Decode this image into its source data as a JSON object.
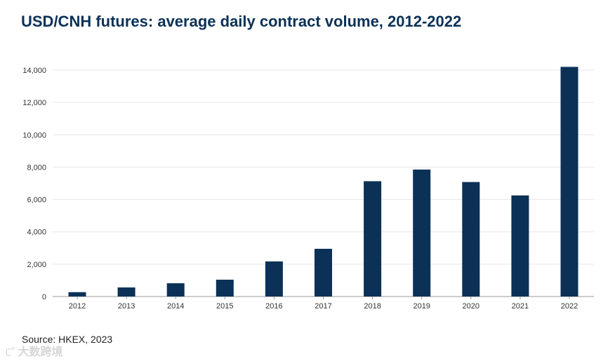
{
  "title": "USD/CNH futures: average daily contract volume, 2012-2022",
  "source": "Source: HKEX, 2023",
  "watermark": {
    "logo": "ʗ°",
    "text": "大数跨境"
  },
  "colors": {
    "bar": "#0b3157",
    "title": "#0b3157",
    "grid": "#e6e6e6",
    "axis": "#9a9a9a",
    "tick_text": "#333333"
  },
  "chart_data": {
    "type": "bar",
    "title": "USD/CNH futures: average daily contract volume, 2012-2022",
    "xlabel": "",
    "ylabel": "",
    "categories": [
      "2012",
      "2013",
      "2014",
      "2015",
      "2016",
      "2017",
      "2018",
      "2019",
      "2020",
      "2021",
      "2022"
    ],
    "values": [
      270,
      560,
      820,
      1040,
      2170,
      2950,
      7130,
      7850,
      7080,
      6250,
      14200
    ],
    "ylim": [
      0,
      14000
    ],
    "yticks": [
      0,
      2000,
      4000,
      6000,
      8000,
      10000,
      12000,
      14000
    ],
    "ytick_labels": [
      "0",
      "2,000",
      "4,000",
      "6,000",
      "8,000",
      "10,000",
      "12,000",
      "14,000"
    ],
    "grid": true,
    "legend": "none"
  }
}
